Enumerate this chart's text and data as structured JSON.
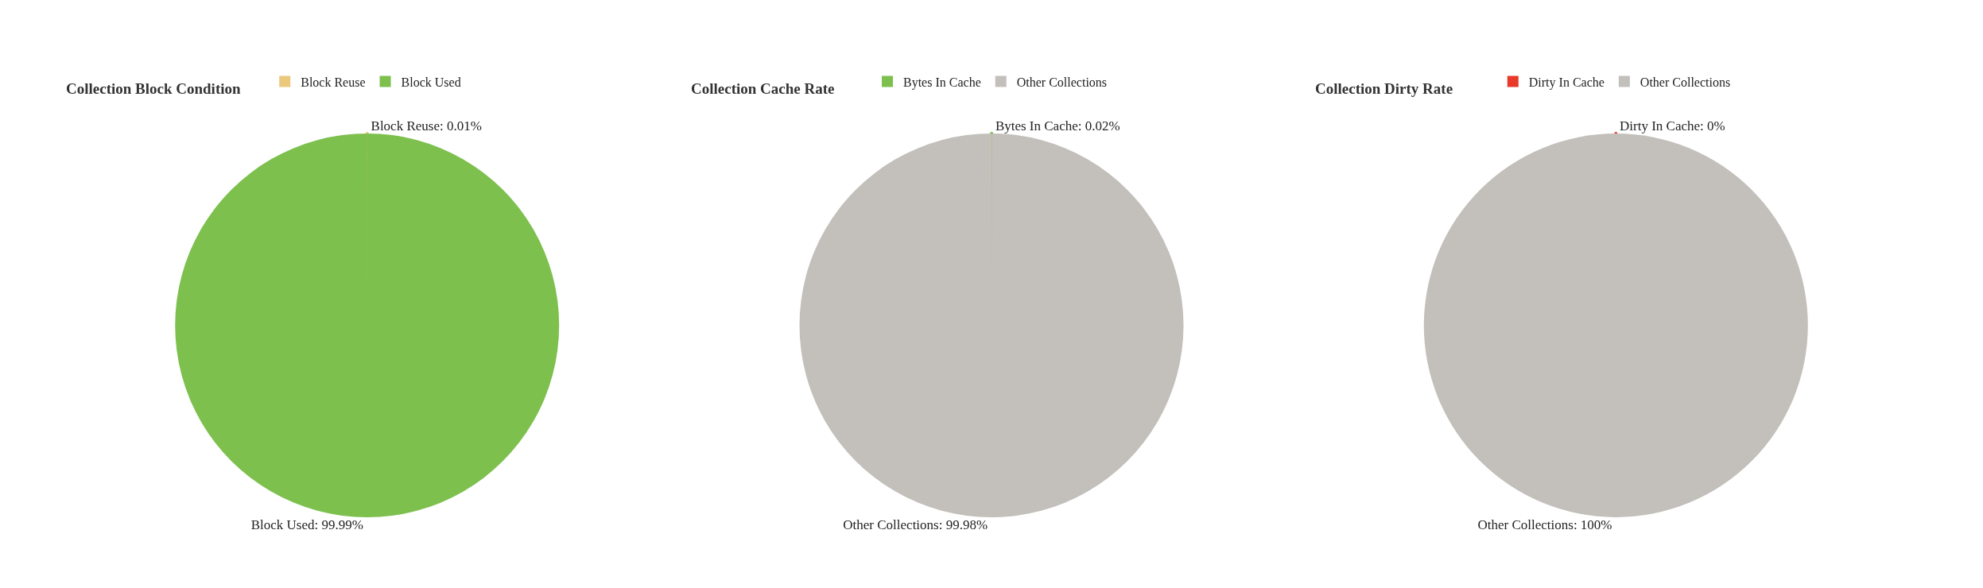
{
  "chart_data": [
    {
      "type": "pie",
      "title": "Collection Block Condition",
      "categories": [
        "Block Reuse",
        "Block Used"
      ],
      "values": [
        0.01,
        99.99
      ],
      "colors": [
        "#ebc97c",
        "#7dc04e"
      ],
      "value_labels": [
        "Block Reuse: 0.01%",
        "Block Used: 99.99%"
      ],
      "legend": "top"
    },
    {
      "type": "pie",
      "title": "Collection Cache Rate",
      "categories": [
        "Bytes In Cache",
        "Other Collections"
      ],
      "values": [
        0.02,
        99.98
      ],
      "colors": [
        "#7dc04e",
        "#c3c0bb"
      ],
      "value_labels": [
        "Bytes In Cache: 0.02%",
        "Other Collections: 99.98%"
      ],
      "legend": "top"
    },
    {
      "type": "pie",
      "title": "Collection Dirty Rate",
      "categories": [
        "Dirty In Cache",
        "Other Collections"
      ],
      "values": [
        0,
        100
      ],
      "colors": [
        "#e8392a",
        "#c3c0bb"
      ],
      "value_labels": [
        "Dirty In Cache: 0%",
        "Other Collections: 100%"
      ],
      "legend": "top"
    }
  ]
}
